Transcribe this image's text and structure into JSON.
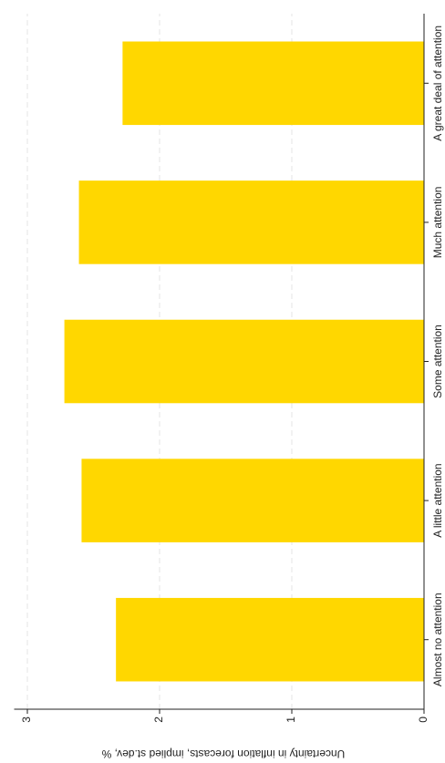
{
  "chart_data": {
    "type": "bar",
    "y_label": "Uncertainty in inflation forecasts, implied st.dev, %",
    "categories": [
      "Almost no attention",
      "A little attention",
      "Some attention",
      "Much attention",
      "A great deal of attention"
    ],
    "values": [
      2.33,
      2.59,
      2.72,
      2.61,
      2.28
    ],
    "color": "#ffd700",
    "ylim": [
      0,
      3.1
    ],
    "yticks": [
      0,
      1,
      2,
      3
    ],
    "grid": true
  }
}
